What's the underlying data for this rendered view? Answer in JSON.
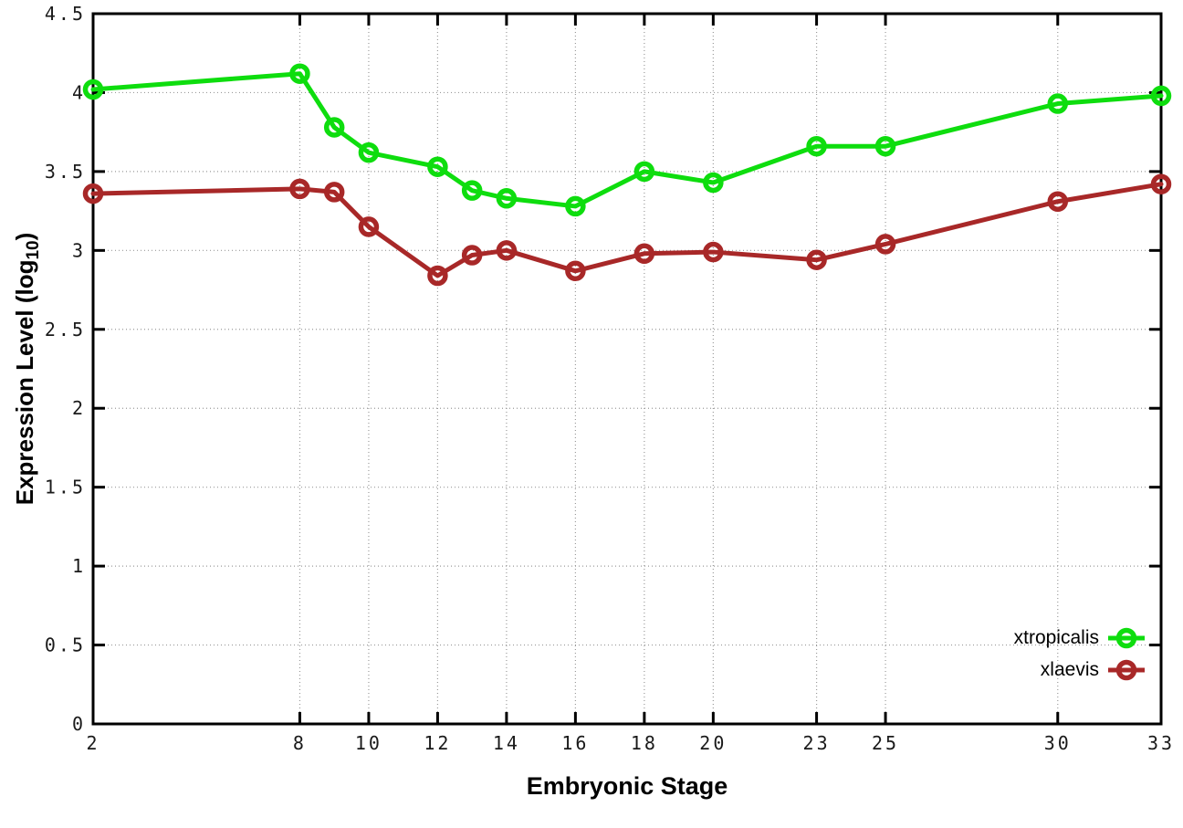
{
  "chart_data": {
    "type": "line",
    "xlabel": "Embryonic Stage",
    "ylabel_main": "Expression Level (log",
    "ylabel_sub": "10",
    "ylabel_end": ")",
    "x": [
      2,
      8,
      9,
      10,
      12,
      13,
      14,
      16,
      18,
      20,
      23,
      25,
      30,
      33
    ],
    "series": [
      {
        "name": "xtropicalis",
        "color": "#0edd0e",
        "values": [
          4.02,
          4.12,
          3.78,
          3.62,
          3.53,
          3.38,
          3.33,
          3.28,
          3.5,
          3.43,
          3.66,
          3.66,
          3.93,
          3.98
        ]
      },
      {
        "name": "xlaevis",
        "color": "#a82828",
        "values": [
          3.36,
          3.39,
          3.37,
          3.15,
          2.84,
          2.97,
          3.0,
          2.87,
          2.98,
          2.99,
          2.94,
          3.04,
          3.31,
          3.42
        ]
      }
    ],
    "xlim": [
      2,
      33
    ],
    "ylim": [
      0,
      4.5
    ],
    "x_ticks": [
      2,
      8,
      10,
      12,
      14,
      16,
      18,
      20,
      23,
      25,
      30,
      33
    ],
    "y_ticks": [
      0,
      0.5,
      1,
      1.5,
      2,
      2.5,
      3,
      3.5,
      4,
      4.5
    ],
    "y_tick_labels": [
      "0",
      "0.5",
      "1",
      "1.5",
      "2",
      "2.5",
      "3",
      "3.5",
      "4",
      "4.5"
    ],
    "grid": true,
    "legend_position": "bottom-right",
    "marker": "open-circle",
    "colors": {
      "frame": "#000000",
      "grid": "#9a9a9a",
      "tick_text": "#1a1a1a",
      "background": "#ffffff"
    }
  }
}
